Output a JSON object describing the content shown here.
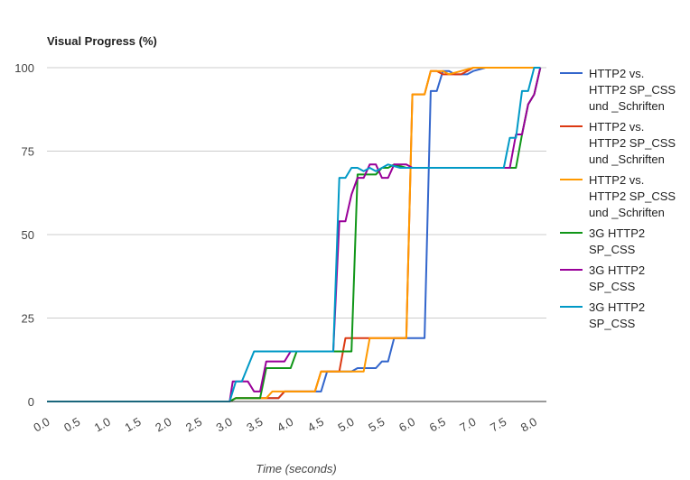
{
  "chart_data": {
    "type": "line",
    "title": "Visual Progress (%)",
    "xlabel": "Time (seconds)",
    "ylabel": "",
    "xlim": [
      0,
      8.2
    ],
    "ylim": [
      0,
      100
    ],
    "x_ticks": [
      "0.0",
      "0.5",
      "1.0",
      "1.5",
      "2.0",
      "2.5",
      "3.0",
      "3.5",
      "4.0",
      "4.5",
      "5.0",
      "5.5",
      "6.0",
      "6.5",
      "7.0",
      "7.5",
      "8.0"
    ],
    "y_ticks": [
      "0",
      "25",
      "50",
      "75",
      "100"
    ],
    "grid": true,
    "legend_position": "right",
    "series": [
      {
        "legend_lines": [
          "HTTP2 vs.",
          "HTTP2 SP_CSS",
          "und _Schriften"
        ],
        "color": "#3366cc",
        "points": [
          [
            0,
            0
          ],
          [
            3.0,
            0
          ],
          [
            3.1,
            1
          ],
          [
            3.8,
            1
          ],
          [
            3.9,
            3
          ],
          [
            4.5,
            3
          ],
          [
            4.6,
            9
          ],
          [
            5.0,
            9
          ],
          [
            5.1,
            10
          ],
          [
            5.4,
            10
          ],
          [
            5.5,
            12
          ],
          [
            5.6,
            12
          ],
          [
            5.7,
            19
          ],
          [
            6.2,
            19
          ],
          [
            6.3,
            93
          ],
          [
            6.4,
            93
          ],
          [
            6.5,
            99
          ],
          [
            6.6,
            99
          ],
          [
            6.7,
            98
          ],
          [
            6.9,
            98
          ],
          [
            7.0,
            99
          ],
          [
            7.2,
            100
          ],
          [
            8.1,
            100
          ]
        ]
      },
      {
        "legend_lines": [
          "HTTP2 vs.",
          "HTTP2 SP_CSS",
          "und _Schriften"
        ],
        "color": "#dc3912",
        "points": [
          [
            0,
            0
          ],
          [
            3.0,
            0
          ],
          [
            3.1,
            1
          ],
          [
            3.8,
            1
          ],
          [
            3.9,
            3
          ],
          [
            4.4,
            3
          ],
          [
            4.5,
            9
          ],
          [
            4.8,
            9
          ],
          [
            4.9,
            19
          ],
          [
            5.9,
            19
          ],
          [
            6.0,
            92
          ],
          [
            6.2,
            92
          ],
          [
            6.3,
            99
          ],
          [
            6.4,
            99
          ],
          [
            6.5,
            98
          ],
          [
            6.8,
            98
          ],
          [
            6.9,
            99
          ],
          [
            7.0,
            100
          ],
          [
            8.1,
            100
          ]
        ]
      },
      {
        "legend_lines": [
          "HTTP2 vs.",
          "HTTP2 SP_CSS",
          "und _Schriften"
        ],
        "color": "#ff9900",
        "points": [
          [
            0,
            0
          ],
          [
            3.0,
            0
          ],
          [
            3.1,
            1
          ],
          [
            3.6,
            1
          ],
          [
            3.7,
            3
          ],
          [
            4.4,
            3
          ],
          [
            4.5,
            9
          ],
          [
            5.2,
            9
          ],
          [
            5.3,
            19
          ],
          [
            5.9,
            19
          ],
          [
            6.0,
            92
          ],
          [
            6.2,
            92
          ],
          [
            6.3,
            99
          ],
          [
            6.5,
            99
          ],
          [
            6.6,
            98
          ],
          [
            6.8,
            99
          ],
          [
            7.0,
            100
          ],
          [
            8.1,
            100
          ]
        ]
      },
      {
        "legend_lines": [
          "3G HTTP2",
          "SP_CSS"
        ],
        "color": "#109618",
        "points": [
          [
            0,
            0
          ],
          [
            3.0,
            0
          ],
          [
            3.1,
            1
          ],
          [
            3.5,
            1
          ],
          [
            3.6,
            10
          ],
          [
            4.0,
            10
          ],
          [
            4.1,
            15
          ],
          [
            4.8,
            15
          ],
          [
            4.9,
            15
          ],
          [
            5.0,
            15
          ],
          [
            5.1,
            68
          ],
          [
            5.4,
            68
          ],
          [
            5.5,
            70
          ],
          [
            5.6,
            70
          ],
          [
            5.7,
            71
          ],
          [
            5.9,
            70
          ],
          [
            7.7,
            70
          ],
          [
            7.8,
            80
          ],
          [
            7.9,
            89
          ],
          [
            8.0,
            92
          ],
          [
            8.1,
            100
          ]
        ]
      },
      {
        "legend_lines": [
          "3G HTTP2",
          "SP_CSS"
        ],
        "color": "#990099",
        "points": [
          [
            0,
            0
          ],
          [
            3.0,
            0
          ],
          [
            3.05,
            6
          ],
          [
            3.3,
            6
          ],
          [
            3.4,
            3
          ],
          [
            3.5,
            3
          ],
          [
            3.6,
            12
          ],
          [
            3.8,
            12
          ],
          [
            3.9,
            12
          ],
          [
            4.0,
            15
          ],
          [
            4.7,
            15
          ],
          [
            4.8,
            54
          ],
          [
            4.9,
            54
          ],
          [
            5.0,
            62
          ],
          [
            5.1,
            67
          ],
          [
            5.2,
            67
          ],
          [
            5.3,
            71
          ],
          [
            5.4,
            71
          ],
          [
            5.5,
            67
          ],
          [
            5.6,
            67
          ],
          [
            5.7,
            71
          ],
          [
            5.9,
            71
          ],
          [
            6.0,
            70
          ],
          [
            7.6,
            70
          ],
          [
            7.7,
            80
          ],
          [
            7.8,
            80
          ],
          [
            7.9,
            89
          ],
          [
            8.0,
            92
          ],
          [
            8.1,
            100
          ]
        ]
      },
      {
        "legend_lines": [
          "3G HTTP2",
          "SP_CSS"
        ],
        "color": "#0099c6",
        "points": [
          [
            0,
            0
          ],
          [
            3.0,
            0
          ],
          [
            3.1,
            6
          ],
          [
            3.2,
            6
          ],
          [
            3.4,
            15
          ],
          [
            4.7,
            15
          ],
          [
            4.8,
            67
          ],
          [
            4.9,
            67
          ],
          [
            5.0,
            70
          ],
          [
            5.1,
            70
          ],
          [
            5.2,
            69
          ],
          [
            5.3,
            70
          ],
          [
            5.4,
            69
          ],
          [
            5.6,
            71
          ],
          [
            5.8,
            70
          ],
          [
            7.5,
            70
          ],
          [
            7.6,
            79
          ],
          [
            7.7,
            79
          ],
          [
            7.8,
            93
          ],
          [
            7.9,
            93
          ],
          [
            8.0,
            100
          ],
          [
            8.1,
            100
          ]
        ]
      }
    ]
  }
}
